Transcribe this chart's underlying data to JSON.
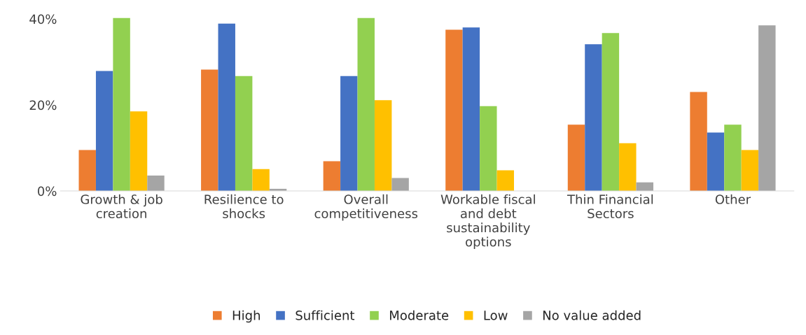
{
  "chart_data": {
    "type": "bar",
    "categories": [
      "Growth & job creation",
      "Resilience to shocks",
      "Overall competitiveness",
      "Workable fiscal and debt sustainability options",
      "Thin Financial Sectors",
      "Other"
    ],
    "series": [
      {
        "name": "High",
        "color": "#ed7d31",
        "values": [
          9.5,
          28.2,
          6.9,
          37.5,
          15.4,
          23.0
        ]
      },
      {
        "name": "Sufficient",
        "color": "#4472c4",
        "values": [
          27.9,
          38.9,
          26.7,
          38.0,
          34.1,
          13.6
        ]
      },
      {
        "name": "Moderate",
        "color": "#92d050",
        "values": [
          40.2,
          26.7,
          40.2,
          19.7,
          36.7,
          15.4
        ]
      },
      {
        "name": "Low",
        "color": "#ffc000",
        "values": [
          18.5,
          5.1,
          21.1,
          4.8,
          11.1,
          9.5
        ]
      },
      {
        "name": "No value added",
        "color": "#a5a5a5",
        "values": [
          3.6,
          0.5,
          3.0,
          null,
          2.0,
          38.5
        ]
      }
    ],
    "ylim": [
      0,
      40.5
    ],
    "yticks": [
      {
        "value": 0,
        "label": "0%"
      },
      {
        "value": 20,
        "label": "20%"
      },
      {
        "value": 40,
        "label": "40%"
      }
    ],
    "grid": false,
    "legend": "bottom"
  }
}
